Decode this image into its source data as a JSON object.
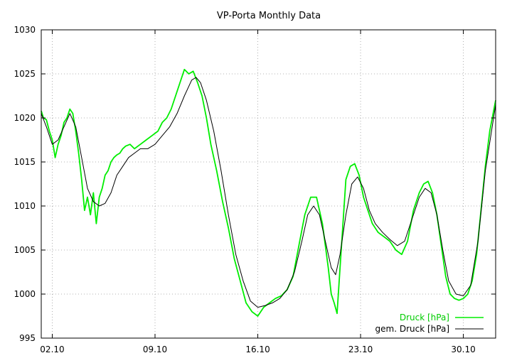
{
  "chart_data": {
    "type": "line",
    "title": "VP-Porta Monthly Data",
    "xlabel": "",
    "ylabel": "",
    "xlim": [
      1.25,
      32.2
    ],
    "ylim": [
      995,
      1030
    ],
    "grid": true,
    "legend_position": "bottom-right",
    "x_ticks": [
      {
        "value": 2,
        "label": "02.10"
      },
      {
        "value": 9,
        "label": "09.10"
      },
      {
        "value": 16,
        "label": "16.10"
      },
      {
        "value": 23,
        "label": "23.10"
      },
      {
        "value": 30,
        "label": "30.10"
      }
    ],
    "y_ticks": [
      995,
      1000,
      1005,
      1010,
      1015,
      1020,
      1025,
      1030
    ],
    "series": [
      {
        "name": "Druck [hPa]",
        "color": "#00ee00",
        "x": [
          1.25,
          1.4,
          1.6,
          1.8,
          2.0,
          2.2,
          2.4,
          2.6,
          2.8,
          3.0,
          3.2,
          3.4,
          3.6,
          3.8,
          4.0,
          4.2,
          4.4,
          4.6,
          4.8,
          5.0,
          5.2,
          5.4,
          5.6,
          5.8,
          6.0,
          6.2,
          6.4,
          6.6,
          6.8,
          7.0,
          7.3,
          7.6,
          8.0,
          8.4,
          8.8,
          9.2,
          9.5,
          9.8,
          10.1,
          10.4,
          10.7,
          11.0,
          11.3,
          11.6,
          11.9,
          12.2,
          12.5,
          12.8,
          13.2,
          13.6,
          14.0,
          14.4,
          14.8,
          15.2,
          15.6,
          16.0,
          16.4,
          16.8,
          17.2,
          17.6,
          18.0,
          18.4,
          18.8,
          19.2,
          19.6,
          20.0,
          20.4,
          20.8,
          21.0,
          21.2,
          21.4,
          21.6,
          21.8,
          22.0,
          22.3,
          22.6,
          22.9,
          23.2,
          23.5,
          23.8,
          24.2,
          24.6,
          25.0,
          25.4,
          25.8,
          26.2,
          26.6,
          27.0,
          27.3,
          27.6,
          27.9,
          28.2,
          28.5,
          28.8,
          29.1,
          29.4,
          29.7,
          30.0,
          30.3,
          30.6,
          30.9,
          31.2,
          31.5,
          31.8,
          32.2
        ],
        "y": [
          1020.8,
          1020.0,
          1019.8,
          1018.5,
          1017.5,
          1015.5,
          1017.0,
          1018.0,
          1019.5,
          1020.0,
          1021.0,
          1020.5,
          1018.5,
          1016.0,
          1013.0,
          1009.5,
          1011.0,
          1009.0,
          1011.5,
          1008.0,
          1011.0,
          1012.0,
          1013.5,
          1014.0,
          1015.0,
          1015.5,
          1015.8,
          1016.0,
          1016.5,
          1016.8,
          1017.0,
          1016.5,
          1017.0,
          1017.5,
          1018.0,
          1018.5,
          1019.5,
          1020.0,
          1021.0,
          1022.5,
          1024.0,
          1025.5,
          1025.0,
          1025.3,
          1024.0,
          1022.5,
          1020.0,
          1017.0,
          1014.0,
          1010.5,
          1007.5,
          1004.0,
          1001.5,
          999.0,
          998.0,
          997.5,
          998.5,
          999.0,
          999.5,
          999.8,
          1000.5,
          1002.0,
          1005.5,
          1009.0,
          1011.0,
          1011.0,
          1008.0,
          1003.0,
          1000.0,
          999.0,
          997.8,
          1003.0,
          1008.0,
          1013.0,
          1014.5,
          1014.8,
          1013.5,
          1011.0,
          1009.5,
          1008.0,
          1007.0,
          1006.5,
          1006.0,
          1005.0,
          1004.5,
          1006.0,
          1009.5,
          1011.5,
          1012.5,
          1012.8,
          1011.5,
          1009.0,
          1005.5,
          1002.0,
          1000.0,
          999.5,
          999.3,
          999.5,
          1000.0,
          1001.5,
          1004.5,
          1009.5,
          1014.5,
          1018.5,
          1022.0
        ]
      },
      {
        "name": "gem. Druck [hPa]",
        "color": "#000000",
        "x": [
          1.25,
          1.6,
          2.0,
          2.4,
          2.8,
          3.2,
          3.6,
          4.0,
          4.4,
          4.8,
          5.2,
          5.6,
          6.0,
          6.4,
          6.8,
          7.2,
          7.6,
          8.0,
          8.5,
          9.0,
          9.5,
          10.0,
          10.5,
          11.0,
          11.5,
          11.8,
          12.1,
          12.5,
          13.0,
          13.5,
          14.0,
          14.5,
          15.0,
          15.5,
          16.0,
          16.5,
          17.0,
          17.5,
          18.0,
          18.5,
          19.0,
          19.4,
          19.8,
          20.2,
          20.6,
          21.0,
          21.3,
          21.6,
          22.0,
          22.4,
          22.8,
          23.2,
          23.6,
          24.0,
          24.5,
          25.0,
          25.5,
          26.0,
          26.5,
          27.0,
          27.4,
          27.8,
          28.2,
          28.6,
          29.0,
          29.5,
          30.0,
          30.5,
          31.0,
          31.5,
          32.2
        ],
        "y": [
          1020.5,
          1019.0,
          1017.0,
          1017.5,
          1019.0,
          1020.5,
          1019.0,
          1015.5,
          1012.0,
          1010.5,
          1010.0,
          1010.3,
          1011.5,
          1013.5,
          1014.5,
          1015.5,
          1016.0,
          1016.5,
          1016.5,
          1017.0,
          1018.0,
          1019.0,
          1020.5,
          1022.5,
          1024.3,
          1024.6,
          1024.0,
          1022.0,
          1018.5,
          1014.0,
          1009.0,
          1004.5,
          1001.5,
          999.2,
          998.5,
          998.7,
          999.0,
          999.5,
          1000.5,
          1002.5,
          1006.0,
          1009.0,
          1010.0,
          1009.0,
          1006.0,
          1003.0,
          1002.2,
          1004.5,
          1009.0,
          1012.5,
          1013.3,
          1012.0,
          1009.5,
          1008.0,
          1007.0,
          1006.2,
          1005.5,
          1006.0,
          1008.5,
          1011.0,
          1012.0,
          1011.5,
          1009.0,
          1005.0,
          1001.5,
          1000.0,
          999.8,
          1001.0,
          1006.0,
          1014.0,
          1021.5
        ]
      }
    ]
  }
}
